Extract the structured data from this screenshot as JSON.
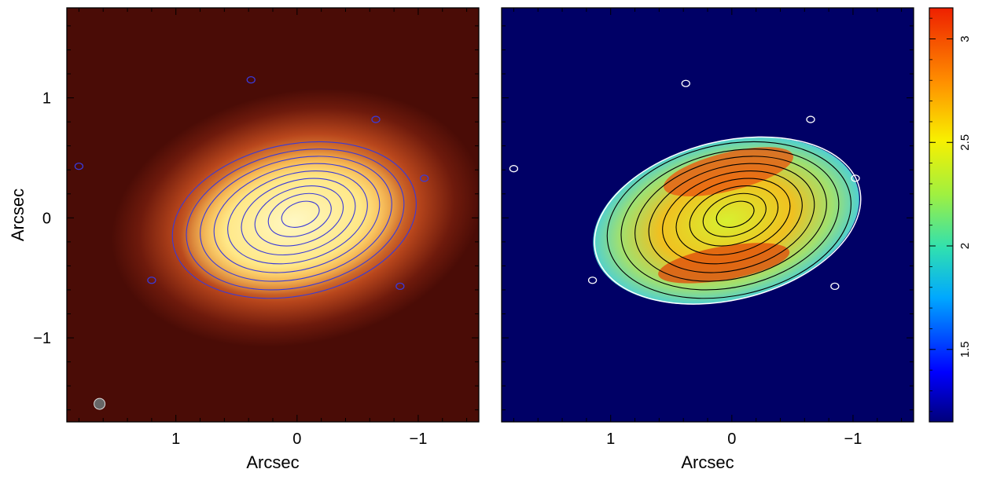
{
  "chart_data": [
    {
      "type": "heatmap",
      "title": "",
      "xlabel": "Arcsec",
      "ylabel": "Arcsec",
      "xlim": [
        1.9,
        -1.5
      ],
      "ylim": [
        -1.7,
        1.75
      ],
      "xticks": [
        1,
        0,
        -1
      ],
      "xtick_labels": [
        "1",
        "0",
        "−1"
      ],
      "yticks": [
        1,
        0,
        -1
      ],
      "ytick_labels": [
        "1",
        "0",
        "−1"
      ],
      "colormap": "red-orange-yellow",
      "contour_color": "#3a3ad8",
      "beam_marker": "bottom-left",
      "source": {
        "center": [
          0,
          0
        ],
        "semi_major": 1.0,
        "semi_minor": 0.6,
        "pa_deg": 20
      },
      "contour_levels": 9
    },
    {
      "type": "heatmap",
      "title": "",
      "xlabel": "Arcsec",
      "ylabel": "",
      "xlim": [
        1.9,
        -1.5
      ],
      "ylim": [
        -1.7,
        1.75
      ],
      "xticks": [
        1,
        0,
        -1
      ],
      "xtick_labels": [
        "1",
        "0",
        "−1"
      ],
      "colormap": "jet",
      "background_color": "#000066",
      "contour_color": "#000000",
      "outline_color": "#ffffff",
      "contour_levels": 9,
      "colorbar": {
        "range": [
          1.15,
          3.15
        ],
        "ticks": [
          1.5,
          2,
          2.5,
          3
        ],
        "tick_labels": [
          "1.5",
          "2",
          "2.5",
          "3"
        ],
        "placement": "right"
      }
    }
  ],
  "colors": {
    "left_bg": "#4a0c06",
    "right_bg": "#000066"
  }
}
